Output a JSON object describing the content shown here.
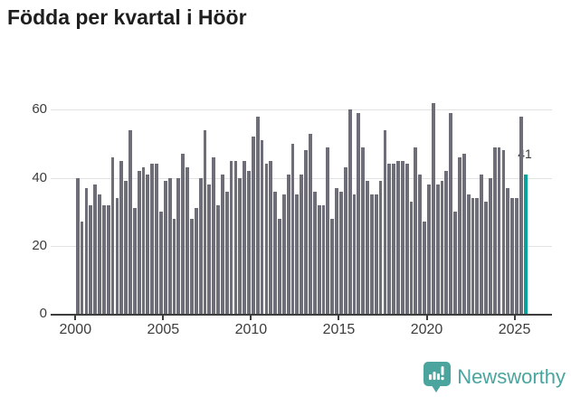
{
  "page": {
    "title": "Födda per kvartal i Höör"
  },
  "chart_data": {
    "type": "bar",
    "title": "Födda per kvartal i Höör",
    "x_start": "2000 Q1",
    "x_end": "2025 Q3",
    "frequency": "quarterly",
    "values": [
      40,
      27,
      37,
      32,
      38,
      35,
      32,
      32,
      46,
      34,
      45,
      39,
      54,
      31,
      42,
      43,
      41,
      44,
      44,
      30,
      39,
      40,
      28,
      40,
      47,
      43,
      28,
      31,
      40,
      54,
      38,
      46,
      32,
      41,
      36,
      45,
      45,
      40,
      45,
      42,
      52,
      58,
      51,
      44,
      45,
      36,
      28,
      35,
      41,
      50,
      35,
      41,
      48,
      53,
      36,
      32,
      32,
      49,
      28,
      37,
      36,
      43,
      60,
      35,
      59,
      49,
      39,
      35,
      35,
      39,
      54,
      44,
      44,
      45,
      45,
      44,
      33,
      49,
      41,
      27,
      38,
      62,
      38,
      39,
      42,
      59,
      30,
      46,
      47,
      35,
      34,
      34,
      41,
      33,
      40,
      49,
      49,
      48,
      37,
      34,
      34,
      58,
      41
    ],
    "x_tick_labels": [
      "2000",
      "2005",
      "2010",
      "2015",
      "2020",
      "2025"
    ],
    "y_ticks": [
      0,
      20,
      40,
      60
    ],
    "ylim": [
      0,
      65
    ],
    "grid": "horizontal",
    "legend": "none",
    "bar_color": "#6e6e78",
    "highlight": {
      "position": "last",
      "label": "41",
      "color": "#00a29d"
    }
  },
  "footer": {
    "brand_name": "Newsworthy"
  },
  "colors": {
    "accent_teal": "#00a29d",
    "logo_teal": "#4ba49e",
    "bar_gray": "#6e6e78",
    "axis": "#3d3d3d",
    "grid": "#e2e2e2",
    "title_text": "#1e1e1e"
  }
}
